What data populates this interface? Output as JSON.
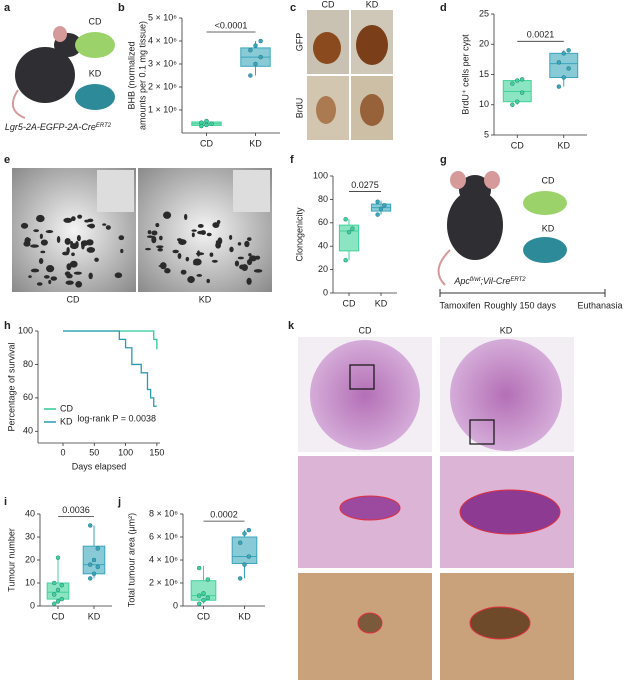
{
  "chart_data": [
    {
      "type": "box",
      "categories": [
        "CD",
        "KD"
      ],
      "colors": [
        "#3fd39a",
        "#3aa6bd"
      ],
      "ylabel": [
        "BHB (normalized",
        "amounts per 0.1 mg tissue)"
      ],
      "ylim": [
        0,
        5000000
      ],
      "yticks": [
        {
          "value": 1000000,
          "label": "1 × 10⁶"
        },
        {
          "value": 2000000,
          "label": "2 × 10⁶"
        },
        {
          "value": 3000000,
          "label": "3 × 10⁶"
        },
        {
          "value": 4000000,
          "label": "4 × 10⁶"
        },
        {
          "value": 5000000,
          "label": "5 × 10⁶"
        }
      ],
      "pvalue": "<0.0001",
      "boxes": [
        {
          "min": 300000,
          "q1": 330000,
          "median": 400000,
          "q3": 480000,
          "max": 520000,
          "points": [
            300000,
            350000,
            400000,
            450000,
            520000
          ]
        },
        {
          "min": 2500000,
          "q1": 2900000,
          "median": 3300000,
          "q3": 3700000,
          "max": 4000000,
          "points": [
            2500000,
            3000000,
            3300000,
            3600000,
            3800000,
            4000000
          ]
        }
      ]
    },
    {
      "type": "box",
      "categories": [
        "CD",
        "KD"
      ],
      "colors": [
        "#3fd39a",
        "#3aa6bd"
      ],
      "ylabel": [
        "BrdU⁺ cells per cypt"
      ],
      "ylim": [
        5,
        25
      ],
      "yticks": [
        5,
        10,
        15,
        20,
        25
      ],
      "pvalue": "0.0021",
      "boxes": [
        {
          "min": 10,
          "q1": 10.5,
          "median": 12.2,
          "q3": 14,
          "max": 14.3,
          "points": [
            10,
            10.5,
            12,
            13.5,
            14,
            14.2
          ]
        },
        {
          "min": 13,
          "q1": 14.5,
          "median": 16.8,
          "q3": 18.5,
          "max": 19,
          "points": [
            13,
            14.5,
            16,
            17,
            18.5,
            19
          ]
        }
      ]
    },
    {
      "type": "box",
      "categories": [
        "CD",
        "KD"
      ],
      "colors": [
        "#3fd39a",
        "#3aa6bd"
      ],
      "ylabel": [
        "Clonogenicity"
      ],
      "ylim": [
        0,
        100
      ],
      "yticks": [
        0,
        20,
        40,
        60,
        80,
        100
      ],
      "pvalue": "0.0275",
      "boxes": [
        {
          "min": 28,
          "q1": 36,
          "median": 53,
          "q3": 58,
          "max": 63,
          "points": [
            28,
            52,
            55,
            63
          ]
        },
        {
          "min": 67,
          "q1": 70,
          "median": 73,
          "q3": 76,
          "max": 79,
          "points": [
            67,
            72,
            75,
            78
          ]
        }
      ]
    },
    {
      "type": "line",
      "step": true,
      "xlabel": "Days elapsed",
      "ylabel": [
        "Percentage of survival"
      ],
      "xlim": [
        -40,
        155
      ],
      "ylim": [
        33,
        100
      ],
      "xticks": [
        0,
        50,
        100,
        150
      ],
      "yticks": [
        40,
        60,
        80,
        100
      ],
      "annotation": "log-rank P = 0.0038",
      "series": [
        {
          "name": "CD",
          "color": "#2fc99a",
          "x": [
            0,
            145,
            145,
            150,
            150
          ],
          "values": [
            100,
            100,
            95,
            95,
            89
          ]
        },
        {
          "name": "KD",
          "color": "#2a9bb5",
          "x": [
            0,
            90,
            90,
            100,
            100,
            110,
            110,
            125,
            125,
            135,
            135,
            140,
            140,
            145,
            145,
            150
          ],
          "values": [
            100,
            100,
            95,
            95,
            90,
            90,
            80,
            80,
            75,
            75,
            65,
            65,
            60,
            60,
            55,
            55
          ]
        }
      ]
    },
    {
      "type": "box",
      "categories": [
        "CD",
        "KD"
      ],
      "colors": [
        "#3fd39a",
        "#3aa6bd"
      ],
      "ylabel": [
        "Tumour number"
      ],
      "ylim": [
        0,
        40
      ],
      "yticks": [
        0,
        10,
        20,
        30,
        40
      ],
      "pvalue": "0.0036",
      "boxes": [
        {
          "min": 1,
          "q1": 3,
          "median": 6,
          "q3": 10,
          "max": 21,
          "points": [
            1,
            2,
            3,
            5,
            7,
            9,
            10,
            21
          ]
        },
        {
          "min": 12,
          "q1": 14,
          "median": 18,
          "q3": 26,
          "max": 35,
          "points": [
            12,
            14,
            17,
            18,
            20,
            25,
            35
          ]
        }
      ]
    },
    {
      "type": "box",
      "categories": [
        "CD",
        "KD"
      ],
      "colors": [
        "#3fd39a",
        "#3aa6bd"
      ],
      "ylabel": [
        "Total tumour area (μm²)"
      ],
      "ylim": [
        0,
        8000000
      ],
      "yticks": [
        0,
        {
          "value": 2000000,
          "label": "2 × 10⁶"
        },
        {
          "value": 4000000,
          "label": "4 × 10⁶"
        },
        {
          "value": 6000000,
          "label": "6 × 10⁶"
        },
        {
          "value": 8000000,
          "label": "8 × 10⁶"
        }
      ],
      "pvalue": "0.0002",
      "boxes": [
        {
          "min": 200000,
          "q1": 500000,
          "median": 900000,
          "q3": 2200000,
          "max": 3500000,
          "points": [
            200000,
            500000,
            700000,
            900000,
            1100000,
            2300000,
            3300000
          ]
        },
        {
          "min": 2400000,
          "q1": 3700000,
          "median": 4300000,
          "q3": 6000000,
          "max": 6600000,
          "points": [
            2400000,
            3600000,
            4300000,
            5500000,
            6300000,
            6600000
          ]
        }
      ]
    }
  ],
  "figure": {
    "panels": [
      "a",
      "b",
      "c",
      "d",
      "e",
      "f",
      "g",
      "h",
      "i",
      "j",
      "k"
    ],
    "a": {
      "diets": [
        "CD",
        "KD"
      ],
      "genotype": [
        "Lgr5-2A-EGFP-2A-Cre",
        "ERT2"
      ]
    },
    "c": {
      "columns": [
        "CD",
        "KD"
      ],
      "rows": [
        "GFP",
        "BrdU"
      ]
    },
    "e": {
      "columns": [
        "CD",
        "KD"
      ]
    },
    "g": {
      "diets": [
        "CD",
        "KD"
      ],
      "genotype": [
        "Apc",
        "fl/wt",
        ";Vil-Cre",
        "ERT2"
      ],
      "timeline": [
        "Tamoxifen",
        "Roughly 150 days",
        "Euthanasia"
      ]
    },
    "k": {
      "columns": [
        "CD",
        "KD"
      ]
    }
  }
}
